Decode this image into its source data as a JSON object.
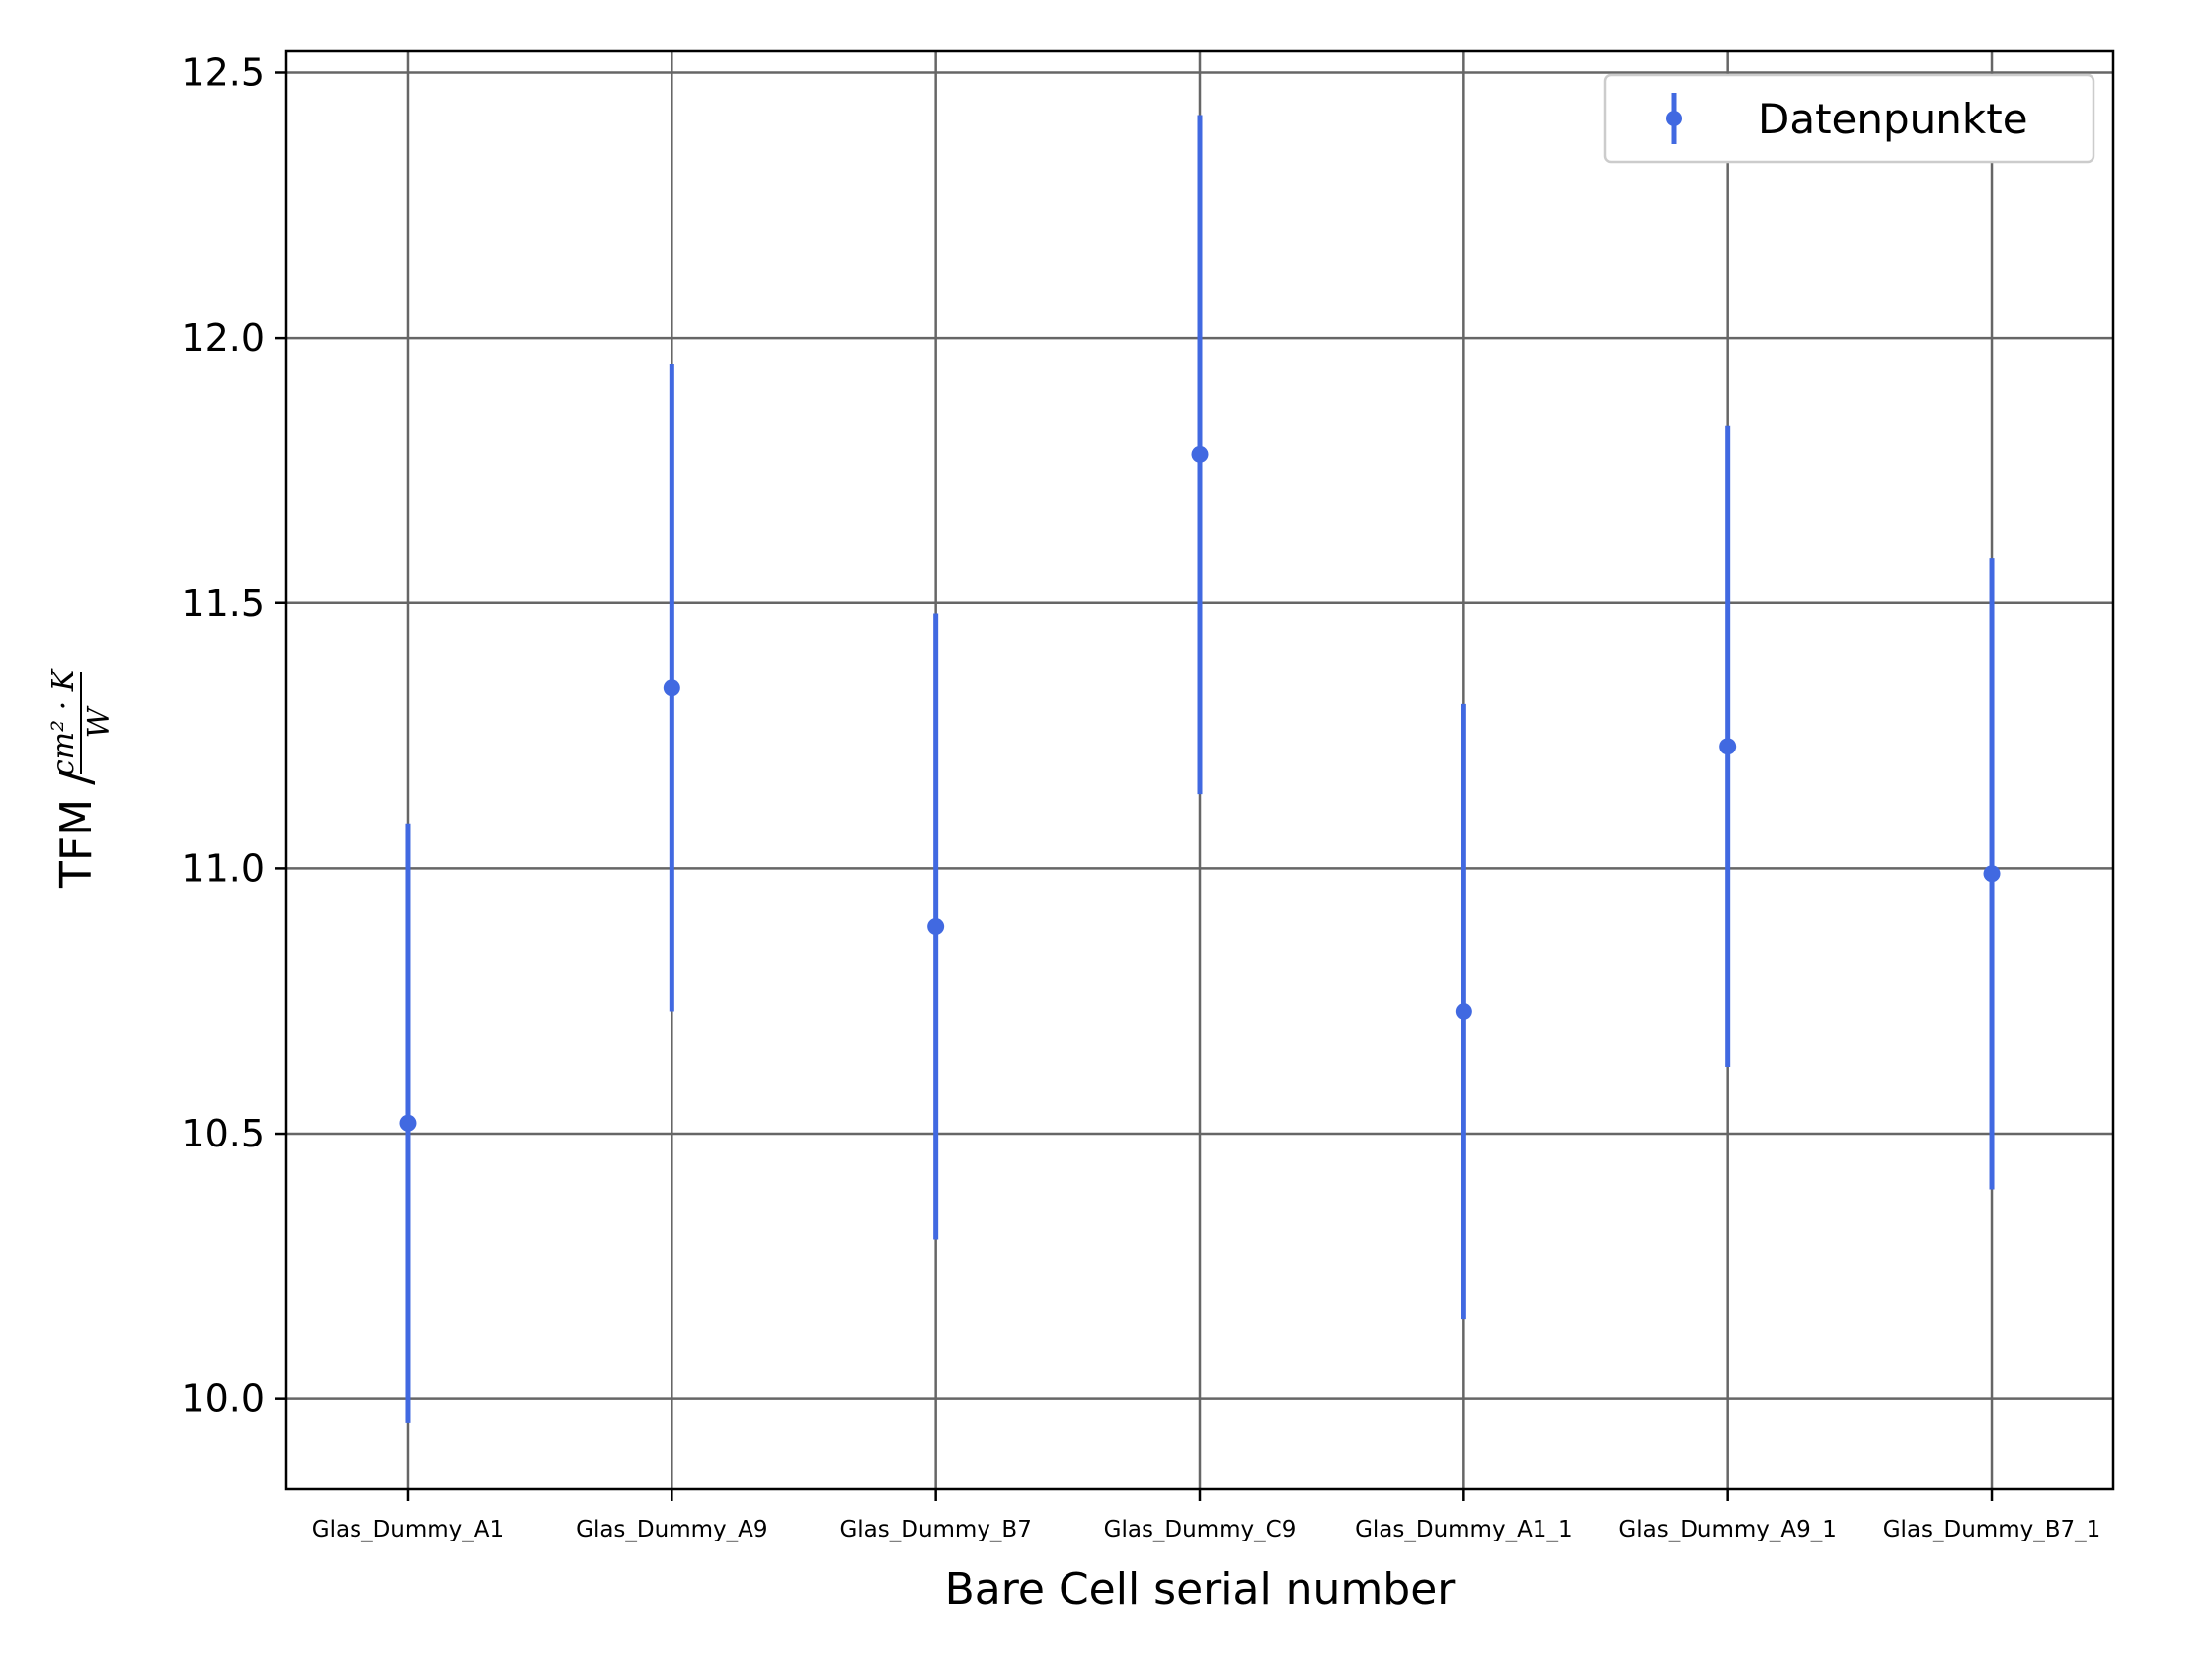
{
  "chart_data": {
    "type": "scatter",
    "categories": [
      "Glas_Dummy_A1",
      "Glas_Dummy_A9",
      "Glas_Dummy_B7",
      "Glas_Dummy_C9",
      "Glas_Dummy_A1_1",
      "Glas_Dummy_A9_1",
      "Glas_Dummy_B7_1"
    ],
    "series": [
      {
        "name": "Datenpunkte",
        "values": [
          10.52,
          11.34,
          10.89,
          11.78,
          10.73,
          11.23,
          10.99
        ],
        "errors": [
          0.565,
          0.61,
          0.59,
          0.64,
          0.58,
          0.605,
          0.595
        ]
      }
    ],
    "xlabel": "Bare Cell serial number",
    "ylabel_prefix": "TFM /",
    "ylabel_numerator": "cm² · K",
    "ylabel_denominator": "W",
    "ylim": [
      9.83,
      12.54
    ],
    "yticks": [
      "10.0",
      "10.5",
      "11.0",
      "11.5",
      "12.0",
      "12.5"
    ],
    "grid": true,
    "legend_position": "top-right",
    "color": "#4169E1"
  }
}
